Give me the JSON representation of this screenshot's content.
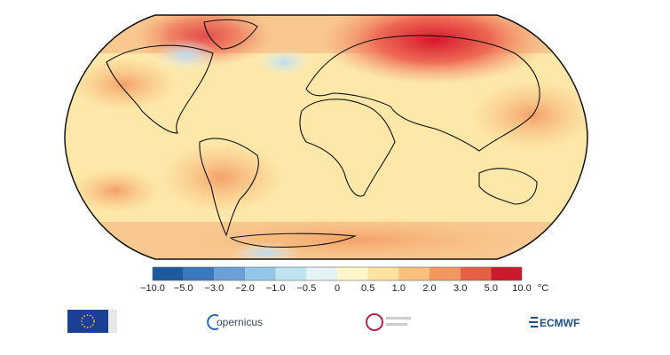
{
  "map": {
    "colorbar": {
      "labels": [
        "−10.0",
        "−5.0",
        "−3.0",
        "−2.0",
        "−1.0",
        "−0.5",
        "0",
        "0.5",
        "1.0",
        "2.0",
        "3.0",
        "5.0",
        "10.0"
      ],
      "colors": [
        "#1d5a9c",
        "#3a78bd",
        "#6b9fd6",
        "#94c6e8",
        "#bfe3f1",
        "#e4f3f4",
        "#fff7c8",
        "#fde2a0",
        "#f8c07c",
        "#f2985f",
        "#e55f45",
        "#cc1a2c"
      ],
      "unit": "°C"
    },
    "logos": {
      "copernicus": "opernicus",
      "ecmwf": "ECMWF"
    }
  }
}
